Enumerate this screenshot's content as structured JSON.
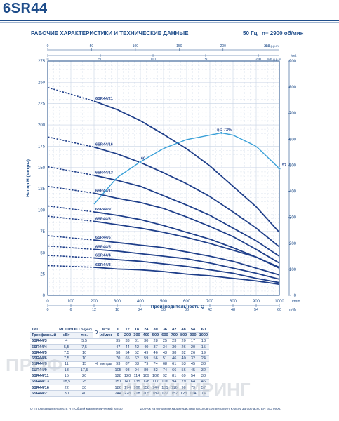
{
  "header": {
    "model": "6SR44",
    "subtitle": "РАБОЧИЕ ХАРАКТЕРИСТИКИ И ТЕХНИЧЕСКИЕ ДАННЫЕ",
    "frequency": "50 Гц",
    "speed": "n= 2900 об/мин"
  },
  "chart_data": {
    "type": "line",
    "y_left": {
      "label": "Напор H (метры)",
      "lim": [
        0,
        275
      ],
      "ticks": [
        0,
        25,
        50,
        75,
        100,
        125,
        150,
        175,
        200,
        225,
        250,
        275
      ]
    },
    "y_right": {
      "label": "feet",
      "lim": [
        0,
        900
      ],
      "ticks": [
        0,
        100,
        200,
        300,
        400,
        500,
        600,
        700,
        800,
        900
      ]
    },
    "x_bottom": {
      "label": "Производительность Q",
      "unit": "l/min",
      "lim": [
        0,
        1000
      ],
      "ticks": [
        0,
        100,
        200,
        300,
        400,
        500,
        600,
        700,
        800,
        900,
        1000
      ]
    },
    "x_bottom2": {
      "unit": "m³/h",
      "ticks": [
        0,
        6,
        12,
        18,
        24,
        30,
        36,
        42,
        48,
        54,
        60
      ]
    },
    "x_top": {
      "unit": "US g.p.m.",
      "ticks": [
        0,
        50,
        100,
        150,
        200,
        250
      ]
    },
    "x_top2": {
      "unit": "IMP g.p.m.",
      "ticks": [
        0,
        50,
        100,
        150,
        200
      ]
    },
    "solid_range": [
      200,
      1000
    ],
    "series": [
      {
        "name": "6SR44/21",
        "x": [
          0,
          200,
          300,
          400,
          500,
          600,
          700,
          800,
          900,
          1000
        ],
        "y": [
          244,
          228,
          218,
          205,
          189,
          172,
          152,
          128,
          104,
          74
        ]
      },
      {
        "name": "6SR44/16",
        "x": [
          0,
          200,
          300,
          400,
          500,
          600,
          700,
          800,
          900,
          1000
        ],
        "y": [
          186,
          174,
          166,
          156,
          144,
          131,
          116,
          98,
          79,
          57
        ]
      },
      {
        "name": "6SR44/13",
        "x": [
          0,
          200,
          300,
          400,
          500,
          600,
          700,
          800,
          900,
          1000
        ],
        "y": [
          151,
          141,
          135,
          128,
          117,
          106,
          94,
          79,
          64,
          46
        ]
      },
      {
        "name": "6SR44/11",
        "x": [
          0,
          200,
          300,
          400,
          500,
          600,
          700,
          800,
          900,
          1000
        ],
        "y": [
          128,
          120,
          114,
          109,
          102,
          92,
          81,
          69,
          54,
          38
        ]
      },
      {
        "name": "6SR44/9",
        "x": [
          0,
          200,
          300,
          400,
          500,
          600,
          700,
          800,
          900,
          1000
        ],
        "y": [
          105,
          98,
          94,
          89,
          82,
          74,
          66,
          56,
          45,
          32
        ]
      },
      {
        "name": "6SR44/8",
        "x": [
          0,
          200,
          300,
          400,
          500,
          600,
          700,
          800,
          900,
          1000
        ],
        "y": [
          93,
          87,
          83,
          79,
          74,
          68,
          61,
          53,
          45,
          33
        ]
      },
      {
        "name": "6SR44/6",
        "x": [
          0,
          200,
          300,
          400,
          500,
          600,
          700,
          800,
          900,
          1000
        ],
        "y": [
          70,
          65,
          62,
          59,
          56,
          51,
          46,
          40,
          32,
          24
        ]
      },
      {
        "name": "6SR44/5",
        "x": [
          0,
          200,
          300,
          400,
          500,
          600,
          700,
          800,
          900,
          1000
        ],
        "y": [
          58,
          54,
          52,
          49,
          46,
          43,
          38,
          32,
          26,
          19
        ]
      },
      {
        "name": "6SR44/4",
        "x": [
          0,
          200,
          300,
          400,
          500,
          600,
          700,
          800,
          900,
          1000
        ],
        "y": [
          47,
          44,
          42,
          40,
          37,
          34,
          30,
          26,
          20,
          15
        ]
      },
      {
        "name": "6SR44/3",
        "x": [
          0,
          200,
          300,
          400,
          500,
          600,
          700,
          800,
          900,
          1000
        ],
        "y": [
          35,
          33,
          31,
          30,
          28,
          25,
          23,
          20,
          17,
          13
        ]
      }
    ],
    "efficiency": {
      "x": [
        200,
        300,
        400,
        500,
        600,
        700,
        750,
        800,
        900,
        1000
      ],
      "eta": [
        41,
        53,
        60,
        66,
        70,
        72,
        73,
        72,
        67,
        57
      ],
      "annotations": [
        {
          "x": 400,
          "text": "60"
        },
        {
          "x": 750,
          "text": "η = 73%"
        },
        {
          "x": 1000,
          "text": "57"
        }
      ]
    }
  },
  "table": {
    "col_type": "ТИП",
    "col_power": "МОЩНОСТЬ (P2)",
    "q_m3h_label": "м³/ч",
    "q_lmin_label": "л/мин",
    "q_label": "Q",
    "three_phase": "Трехфазный",
    "kw": "кВт",
    "hp": "л.с.",
    "h_label": "H",
    "h_unit": "метры",
    "q_m3h": [
      "0",
      "12",
      "18",
      "24",
      "30",
      "36",
      "42",
      "48",
      "54",
      "60"
    ],
    "q_lmin": [
      "0",
      "200",
      "300",
      "400",
      "500",
      "600",
      "700",
      "800",
      "900",
      "1000"
    ],
    "rows": [
      {
        "model": "6SR44/3",
        "kw": "4",
        "hp": "5,5",
        "h": [
          "35",
          "33",
          "31",
          "30",
          "28",
          "25",
          "23",
          "20",
          "17",
          "13"
        ]
      },
      {
        "model": "6SR44/4",
        "kw": "5,5",
        "hp": "7,5",
        "h": [
          "47",
          "44",
          "42",
          "40",
          "37",
          "34",
          "30",
          "26",
          "20",
          "15"
        ]
      },
      {
        "model": "6SR44/5",
        "kw": "7,5",
        "hp": "10",
        "h": [
          "58",
          "54",
          "52",
          "49",
          "46",
          "43",
          "38",
          "32",
          "26",
          "19"
        ]
      },
      {
        "model": "6SR44/6",
        "kw": "7,5",
        "hp": "10",
        "h": [
          "70",
          "65",
          "62",
          "59",
          "56",
          "51",
          "46",
          "40",
          "32",
          "24"
        ]
      },
      {
        "model": "6SR44/8",
        "kw": "11",
        "hp": "15",
        "h": [
          "93",
          "87",
          "83",
          "79",
          "74",
          "68",
          "61",
          "53",
          "45",
          "33"
        ]
      },
      {
        "model": "6SR44/9",
        "kw": "13",
        "hp": "17,5",
        "h": [
          "105",
          "98",
          "94",
          "89",
          "82",
          "74",
          "66",
          "56",
          "45",
          "32"
        ]
      },
      {
        "model": "6SR44/11",
        "kw": "15",
        "hp": "20",
        "h": [
          "128",
          "120",
          "114",
          "109",
          "102",
          "92",
          "81",
          "69",
          "54",
          "38"
        ]
      },
      {
        "model": "6SR44/13",
        "kw": "18,5",
        "hp": "25",
        "h": [
          "151",
          "141",
          "135",
          "128",
          "117",
          "106",
          "94",
          "79",
          "64",
          "46"
        ]
      },
      {
        "model": "6SR44/16",
        "kw": "22",
        "hp": "30",
        "h": [
          "186",
          "174",
          "166",
          "156",
          "144",
          "131",
          "116",
          "98",
          "79",
          "57"
        ]
      },
      {
        "model": "6SR44/21",
        "kw": "30",
        "hp": "40",
        "h": [
          "244",
          "228",
          "218",
          "205",
          "189",
          "172",
          "152",
          "128",
          "104",
          "74"
        ]
      }
    ],
    "footnote": "Q = Производительность  H = Общий манометрический напор",
    "footnote2": "Допуск на основные характеристики насосов соответствует Классу 3B согласно EN ISO 9906."
  },
  "watermark": {
    "line1": "ПРОФ",
    "line2": "ИНЖИНИРИНГ"
  },
  "colors": {
    "curve": "#1f3f8a",
    "efficiency": "#39a0d8",
    "grid": "#c8d3e4",
    "axis": "#1f4d8a"
  }
}
